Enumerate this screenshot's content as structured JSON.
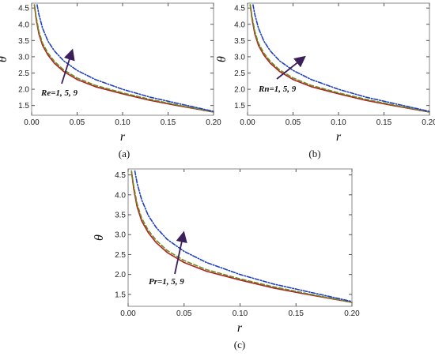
{
  "colors": {
    "series_1": "#b22222",
    "series_5": "#6b8e23",
    "series_9": "#1f3fbf",
    "arrow": "#3b1f5a",
    "frame": "#888888"
  },
  "chart_data": [
    {
      "type": "line",
      "caption": "(a)",
      "xlabel": "r",
      "ylabel": "θ",
      "xlim": [
        0.0,
        0.2
      ],
      "ylim": [
        1.2,
        4.65
      ],
      "xticks": [
        "0.00",
        "0.05",
        "0.10",
        "0.15",
        "0.20"
      ],
      "yticks": [
        "1.5",
        "2.0",
        "2.5",
        "3.0",
        "3.5",
        "4.0",
        "4.5"
      ],
      "annotation": "Re=1, 5, 9",
      "grid": false,
      "series": [
        {
          "style": "solid",
          "x": [
            0.003,
            0.005,
            0.008,
            0.012,
            0.018,
            0.025,
            0.035,
            0.05,
            0.07,
            0.1,
            0.13,
            0.16,
            0.2
          ],
          "y": [
            4.6,
            4.15,
            3.7,
            3.35,
            3.05,
            2.8,
            2.55,
            2.3,
            2.08,
            1.86,
            1.66,
            1.5,
            1.3
          ]
        },
        {
          "style": "dashed",
          "x": [
            0.003,
            0.005,
            0.008,
            0.012,
            0.018,
            0.025,
            0.035,
            0.05,
            0.07,
            0.1,
            0.13,
            0.16,
            0.2
          ],
          "y": [
            4.6,
            4.22,
            3.78,
            3.42,
            3.11,
            2.86,
            2.6,
            2.35,
            2.12,
            1.89,
            1.69,
            1.52,
            1.3
          ]
        },
        {
          "style": "dotdash",
          "x": [
            0.006,
            0.008,
            0.012,
            0.018,
            0.025,
            0.035,
            0.05,
            0.07,
            0.1,
            0.13,
            0.16,
            0.2
          ],
          "y": [
            4.6,
            4.3,
            3.88,
            3.48,
            3.18,
            2.88,
            2.58,
            2.3,
            2.0,
            1.76,
            1.57,
            1.32
          ]
        }
      ]
    },
    {
      "type": "line",
      "caption": "(b)",
      "xlabel": "r",
      "ylabel": "θ",
      "xlim": [
        0.0,
        0.2
      ],
      "ylim": [
        1.2,
        4.65
      ],
      "xticks": [
        "0.00",
        "0.05",
        "0.10",
        "0.15",
        "0.20"
      ],
      "yticks": [
        "1.5",
        "2.0",
        "2.5",
        "3.0",
        "3.5",
        "4.0",
        "4.5"
      ],
      "annotation": "Rn=1, 5, 9",
      "grid": false,
      "series": [
        {
          "style": "solid",
          "x": [
            0.003,
            0.005,
            0.008,
            0.012,
            0.018,
            0.025,
            0.035,
            0.05,
            0.07,
            0.1,
            0.13,
            0.16,
            0.2
          ],
          "y": [
            4.6,
            4.15,
            3.7,
            3.35,
            3.05,
            2.8,
            2.55,
            2.3,
            2.08,
            1.86,
            1.66,
            1.5,
            1.3
          ]
        },
        {
          "style": "dashed",
          "x": [
            0.003,
            0.005,
            0.008,
            0.012,
            0.018,
            0.025,
            0.035,
            0.05,
            0.07,
            0.1,
            0.13,
            0.16,
            0.2
          ],
          "y": [
            4.6,
            4.22,
            3.78,
            3.42,
            3.11,
            2.86,
            2.6,
            2.35,
            2.12,
            1.89,
            1.69,
            1.52,
            1.3
          ]
        },
        {
          "style": "dotdash",
          "x": [
            0.006,
            0.008,
            0.012,
            0.018,
            0.025,
            0.035,
            0.05,
            0.07,
            0.1,
            0.13,
            0.16,
            0.2
          ],
          "y": [
            4.6,
            4.3,
            3.88,
            3.48,
            3.18,
            2.88,
            2.58,
            2.3,
            2.0,
            1.76,
            1.57,
            1.32
          ]
        }
      ]
    },
    {
      "type": "line",
      "caption": "(c)",
      "xlabel": "r",
      "ylabel": "θ",
      "xlim": [
        0.0,
        0.2
      ],
      "ylim": [
        1.2,
        4.65
      ],
      "xticks": [
        "0.00",
        "0.05",
        "0.10",
        "0.15",
        "0.20"
      ],
      "yticks": [
        "1.5",
        "2.0",
        "2.5",
        "3.0",
        "3.5",
        "4.0",
        "4.5"
      ],
      "annotation": "Pr=1, 5, 9",
      "grid": false,
      "series": [
        {
          "style": "solid",
          "x": [
            0.003,
            0.005,
            0.008,
            0.012,
            0.018,
            0.025,
            0.035,
            0.05,
            0.07,
            0.1,
            0.13,
            0.16,
            0.2
          ],
          "y": [
            4.6,
            4.15,
            3.7,
            3.35,
            3.05,
            2.8,
            2.55,
            2.3,
            2.08,
            1.86,
            1.66,
            1.5,
            1.3
          ]
        },
        {
          "style": "dashed",
          "x": [
            0.003,
            0.005,
            0.008,
            0.012,
            0.018,
            0.025,
            0.035,
            0.05,
            0.07,
            0.1,
            0.13,
            0.16,
            0.2
          ],
          "y": [
            4.6,
            4.22,
            3.78,
            3.42,
            3.11,
            2.86,
            2.6,
            2.35,
            2.12,
            1.89,
            1.69,
            1.52,
            1.3
          ]
        },
        {
          "style": "dotdash",
          "x": [
            0.006,
            0.008,
            0.012,
            0.018,
            0.025,
            0.035,
            0.05,
            0.07,
            0.1,
            0.13,
            0.16,
            0.2
          ],
          "y": [
            4.6,
            4.3,
            3.88,
            3.48,
            3.18,
            2.88,
            2.58,
            2.3,
            2.0,
            1.76,
            1.57,
            1.32
          ]
        }
      ]
    }
  ]
}
